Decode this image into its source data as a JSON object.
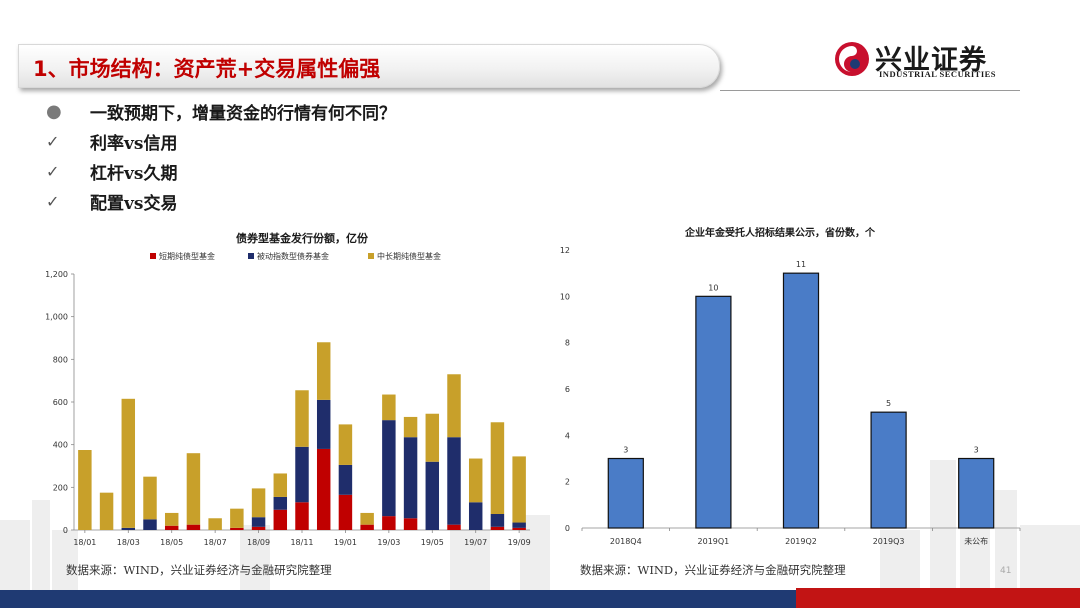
{
  "header": {
    "title": "1、市场结构：资产荒+交易属性偏强",
    "logo_cn": "兴业证券",
    "logo_en": "INDUSTRIAL SECURITIES"
  },
  "bullets": [
    {
      "mark": "●",
      "text": "一致预期下，增量资金的行情有何不同？"
    },
    {
      "mark": "✓",
      "text": "利率vs信用"
    },
    {
      "mark": "✓",
      "text": "杠杆vs久期"
    },
    {
      "mark": "✓",
      "text": "配置vs交易"
    }
  ],
  "colors": {
    "title": "#c00000",
    "short": "#c00000",
    "index": "#1f2d6b",
    "mid": "#c8a02a",
    "bar2": "#4a7cc7"
  },
  "chart_data": [
    {
      "type": "bar",
      "stacked": true,
      "title": "债券型基金发行份额，亿份",
      "categories": [
        "18/01",
        "18/02",
        "18/03",
        "18/04",
        "18/05",
        "18/06",
        "18/07",
        "18/08",
        "18/09",
        "18/10",
        "18/11",
        "18/12",
        "19/01",
        "19/02",
        "19/03",
        "19/04",
        "19/05",
        "19/06",
        "19/07",
        "19/08",
        "19/09"
      ],
      "x_tick_labels": [
        "18/01",
        "18/03",
        "18/05",
        "18/07",
        "18/09",
        "18/11",
        "19/01",
        "19/03",
        "19/05",
        "19/07",
        "19/09"
      ],
      "series": [
        {
          "name": "短期纯债型基金",
          "values": [
            0,
            0,
            0,
            0,
            20,
            25,
            0,
            10,
            15,
            95,
            130,
            380,
            165,
            25,
            65,
            55,
            0,
            25,
            0,
            15,
            10
          ]
        },
        {
          "name": "被动指数型债券基金",
          "values": [
            0,
            0,
            10,
            50,
            0,
            0,
            0,
            0,
            45,
            60,
            260,
            230,
            140,
            0,
            450,
            380,
            320,
            410,
            130,
            60,
            25
          ]
        },
        {
          "name": "中长期纯债型基金",
          "values": [
            375,
            175,
            605,
            200,
            60,
            335,
            55,
            90,
            135,
            110,
            265,
            270,
            190,
            55,
            120,
            95,
            225,
            295,
            205,
            430,
            310
          ]
        }
      ],
      "yticks": [
        "0",
        "200",
        "400",
        "600",
        "800",
        "1,000",
        "1,200"
      ],
      "ylim": [
        0,
        1200
      ],
      "legend": "top"
    },
    {
      "type": "bar",
      "title": "企业年金受托人招标结果公示，省份数，个",
      "categories": [
        "2018Q4",
        "2019Q1",
        "2019Q2",
        "2019Q3",
        "未公布"
      ],
      "values": [
        3,
        10,
        11,
        5,
        3
      ],
      "yticks": [
        "0",
        "2",
        "4",
        "6",
        "8",
        "10",
        "12"
      ],
      "ylim": [
        0,
        12
      ]
    }
  ],
  "sources": {
    "left": "数据来源：WIND，兴业证券经济与金融研究院整理",
    "right": "数据来源：WIND，兴业证券经济与金融研究院整理"
  },
  "page_number": "41"
}
